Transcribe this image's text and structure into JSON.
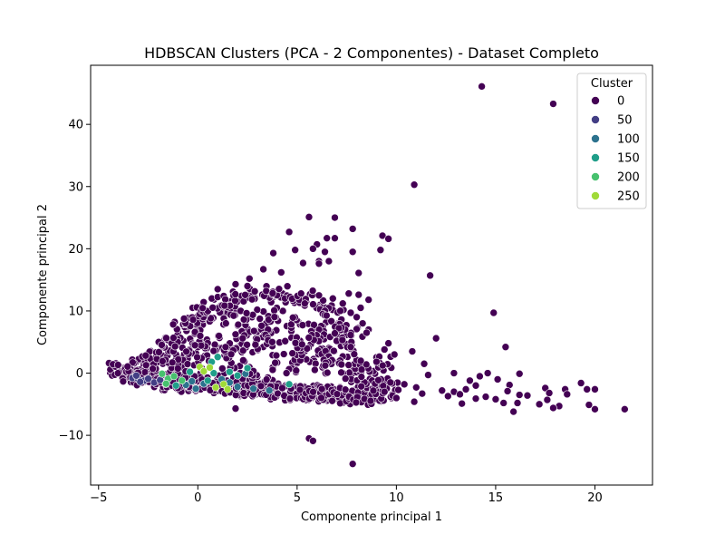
{
  "chart_data": {
    "type": "scatter",
    "title": "HDBSCAN Clusters (PCA - 2 Componentes) - Dataset Completo",
    "xlabel": "Componente principal 1",
    "ylabel": "Componente principal 2",
    "xlim": [
      -5.4,
      22.9
    ],
    "ylim": [
      -18,
      49.5
    ],
    "xticks": [
      -5,
      0,
      5,
      10,
      15,
      20
    ],
    "yticks": [
      -10,
      0,
      10,
      20,
      30,
      40
    ],
    "grid": false,
    "legend": {
      "title": "Cluster",
      "placement": "top-right",
      "entries": [
        {
          "label": "0",
          "color": "#440154"
        },
        {
          "label": "50",
          "color": "#433e85"
        },
        {
          "label": "100",
          "color": "#2c728e"
        },
        {
          "label": "150",
          "color": "#1f9e89"
        },
        {
          "label": "200",
          "color": "#47c16e"
        },
        {
          "label": "250",
          "color": "#a0da39"
        }
      ]
    },
    "series": [
      {
        "cluster": 0,
        "color": "#440154",
        "points": [
          [
            14.3,
            46.1
          ],
          [
            17.9,
            43.3
          ],
          [
            10.9,
            30.3
          ],
          [
            5.6,
            25.1
          ],
          [
            6.9,
            25.0
          ],
          [
            7.8,
            23.2
          ],
          [
            4.6,
            22.7
          ],
          [
            9.3,
            22.1
          ],
          [
            9.6,
            21.6
          ],
          [
            6.9,
            21.7
          ],
          [
            6.5,
            21.7
          ],
          [
            6.0,
            20.7
          ],
          [
            5.8,
            20.0
          ],
          [
            4.9,
            19.8
          ],
          [
            9.2,
            19.8
          ],
          [
            7.8,
            19.5
          ],
          [
            6.4,
            19.5
          ],
          [
            3.8,
            19.3
          ],
          [
            6.1,
            18.0
          ],
          [
            6.6,
            18.0
          ],
          [
            5.3,
            17.7
          ],
          [
            6.1,
            17.6
          ],
          [
            4.2,
            16.2
          ],
          [
            11.7,
            15.7
          ],
          [
            3.3,
            16.7
          ],
          [
            8.1,
            16.1
          ],
          [
            2.6,
            15.2
          ],
          [
            1.0,
            13.5
          ],
          [
            1.9,
            14.3
          ],
          [
            2.5,
            14.0
          ],
          [
            5.2,
            12.8
          ],
          [
            6.1,
            12.5
          ],
          [
            6.8,
            12.0
          ],
          [
            7.6,
            12.8
          ],
          [
            8.1,
            12.6
          ],
          [
            8.6,
            11.8
          ],
          [
            7.3,
            11.2
          ],
          [
            8.2,
            10.5
          ],
          [
            7.7,
            9.7
          ],
          [
            14.9,
            9.7
          ],
          [
            8.0,
            9.0
          ],
          [
            8.3,
            8.0
          ],
          [
            8.6,
            7.0
          ],
          [
            6.9,
            6.4
          ],
          [
            8.5,
            6.5
          ],
          [
            12.0,
            5.6
          ],
          [
            9.6,
            4.8
          ],
          [
            7.7,
            4.2
          ],
          [
            15.5,
            4.2
          ],
          [
            9.4,
            3.8
          ],
          [
            10.8,
            3.5
          ],
          [
            9.9,
            3.0
          ],
          [
            11.4,
            1.5
          ],
          [
            12.9,
            0.0
          ],
          [
            14.6,
            0.0
          ],
          [
            16.2,
            -0.1
          ],
          [
            11.6,
            -0.3
          ],
          [
            14.2,
            -0.5
          ],
          [
            15.1,
            -1.0
          ],
          [
            13.7,
            -1.2
          ],
          [
            19.3,
            -1.6
          ],
          [
            15.7,
            -1.9
          ],
          [
            14.0,
            -2.0
          ],
          [
            17.5,
            -2.4
          ],
          [
            11.0,
            -2.3
          ],
          [
            12.3,
            -2.8
          ],
          [
            13.5,
            -2.6
          ],
          [
            15.6,
            -2.9
          ],
          [
            18.5,
            -2.6
          ],
          [
            19.6,
            -2.6
          ],
          [
            20.0,
            -2.6
          ],
          [
            12.9,
            -3.0
          ],
          [
            17.7,
            -3.2
          ],
          [
            13.2,
            -3.4
          ],
          [
            16.2,
            -3.5
          ],
          [
            16.6,
            -3.6
          ],
          [
            12.6,
            -3.7
          ],
          [
            14.5,
            -3.8
          ],
          [
            18.6,
            -3.4
          ],
          [
            14.0,
            -4.1
          ],
          [
            15.0,
            -4.2
          ],
          [
            17.6,
            -4.3
          ],
          [
            10.9,
            -4.6
          ],
          [
            15.4,
            -4.8
          ],
          [
            16.1,
            -4.8
          ],
          [
            13.3,
            -4.9
          ],
          [
            17.2,
            -5.0
          ],
          [
            18.2,
            -5.3
          ],
          [
            19.7,
            -5.1
          ],
          [
            20.0,
            -5.8
          ],
          [
            21.5,
            -5.8
          ],
          [
            15.9,
            -6.2
          ],
          [
            17.9,
            -5.6
          ],
          [
            1.9,
            -5.7
          ],
          [
            5.6,
            -10.5
          ],
          [
            5.8,
            -10.9
          ],
          [
            7.8,
            -14.6
          ],
          [
            11.3,
            -3.3
          ],
          [
            10.1,
            -2.7
          ],
          [
            9.4,
            -3.0
          ],
          [
            9.7,
            -1.5
          ],
          [
            10.4,
            -1.8
          ],
          [
            9.8,
            -3.6
          ],
          [
            10.0,
            -4.0
          ]
        ]
      }
    ],
    "blob_points": [
      [
        -3.8,
        0.7
      ],
      [
        -3.6,
        0.4
      ],
      [
        -3.3,
        0.2
      ],
      [
        -3.0,
        -0.5
      ],
      [
        -2.7,
        -0.3
      ],
      [
        -2.4,
        -0.9
      ],
      [
        -2.1,
        -1.2
      ],
      [
        -1.8,
        -0.6
      ],
      [
        -1.5,
        -1.6
      ],
      [
        -1.2,
        -0.8
      ],
      [
        -0.9,
        -1.4
      ],
      [
        -0.6,
        -0.9
      ],
      [
        -0.3,
        -1.8
      ],
      [
        0.2,
        -2.0
      ],
      [
        0.6,
        -1.2
      ],
      [
        1.0,
        -2.2
      ],
      [
        1.4,
        -1.6
      ],
      [
        1.8,
        -2.5
      ],
      [
        2.2,
        -1.9
      ],
      [
        2.6,
        -2.7
      ],
      [
        3.0,
        -2.3
      ],
      [
        3.4,
        -3.0
      ],
      [
        3.8,
        -2.6
      ],
      [
        4.2,
        -3.1
      ],
      [
        4.6,
        -2.8
      ],
      [
        5.0,
        -3.2
      ],
      [
        5.4,
        -3.4
      ],
      [
        5.8,
        -3.0
      ],
      [
        6.2,
        -3.5
      ],
      [
        6.6,
        -3.2
      ],
      [
        7.0,
        -3.6
      ],
      [
        7.4,
        -3.3
      ],
      [
        7.8,
        -3.8
      ],
      [
        8.2,
        -3.5
      ],
      [
        8.6,
        -3.9
      ],
      [
        9.0,
        -3.4
      ],
      [
        -1.0,
        6.4
      ],
      [
        -0.5,
        7.5
      ],
      [
        0.0,
        8.5
      ],
      [
        0.5,
        9.7
      ],
      [
        1.0,
        10.5
      ],
      [
        1.5,
        11.2
      ],
      [
        2.0,
        12.0
      ],
      [
        3.0,
        12.6
      ],
      [
        4.0,
        12.8
      ],
      [
        5.0,
        12.2
      ],
      [
        6.0,
        11.0
      ],
      [
        7.0,
        9.0
      ],
      [
        7.5,
        7.0
      ],
      [
        7.0,
        5.0
      ],
      [
        6.0,
        3.0
      ],
      [
        4.5,
        1.0
      ],
      [
        3.0,
        -1.0
      ],
      [
        2.0,
        1.0
      ],
      [
        1.0,
        3.0
      ],
      [
        -0.5,
        2.0
      ],
      [
        -2.0,
        2.5
      ],
      [
        -2.8,
        1.8
      ],
      [
        -1.5,
        4.5
      ],
      [
        0.5,
        5.5
      ],
      [
        2.5,
        6.0
      ],
      [
        4.0,
        7.0
      ],
      [
        5.5,
        8.0
      ],
      [
        6.5,
        6.5
      ],
      [
        3.5,
        9.5
      ],
      [
        2.0,
        8.5
      ],
      [
        1.5,
        4.0
      ],
      [
        3.0,
        4.5
      ],
      [
        4.5,
        4.0
      ],
      [
        5.5,
        5.0
      ],
      [
        0.0,
        3.5
      ],
      [
        -1.0,
        1.0
      ],
      [
        8.0,
        -1.0
      ],
      [
        8.5,
        0.5
      ],
      [
        9.5,
        -2.0
      ],
      [
        9.0,
        1.5
      ],
      [
        7.5,
        2.5
      ],
      [
        6.5,
        1.0
      ]
    ],
    "small_clusters": [
      {
        "cluster": 50,
        "color": "#433e85",
        "points": [
          [
            -3.3,
            -0.8
          ],
          [
            -3.0,
            -1.0
          ],
          [
            -2.7,
            -1.2
          ],
          [
            -2.2,
            -1.5
          ],
          [
            -3.1,
            -0.4
          ],
          [
            -2.5,
            -0.9
          ],
          [
            -1.9,
            -1.1
          ],
          [
            -2.9,
            -1.4
          ]
        ]
      },
      {
        "cluster": 100,
        "color": "#2c728e",
        "points": [
          [
            -0.6,
            -1.9
          ],
          [
            -0.3,
            -1.3
          ],
          [
            0.3,
            -1.7
          ],
          [
            1.2,
            -1.0
          ],
          [
            2.0,
            -2.2
          ],
          [
            2.4,
            -0.1
          ],
          [
            2.8,
            -2.5
          ],
          [
            3.6,
            -2.8
          ],
          [
            -0.1,
            -2.5
          ],
          [
            1.6,
            -1.5
          ]
        ]
      },
      {
        "cluster": 150,
        "color": "#1f9e89",
        "points": [
          [
            0.7,
            1.8
          ],
          [
            1.0,
            2.6
          ],
          [
            0.8,
            0.0
          ],
          [
            1.6,
            0.2
          ],
          [
            2.5,
            0.8
          ],
          [
            -0.4,
            0.2
          ],
          [
            -1.1,
            -2.0
          ],
          [
            0.5,
            -1.2
          ],
          [
            2.0,
            -0.4
          ],
          [
            4.6,
            -1.8
          ]
        ]
      },
      {
        "cluster": 200,
        "color": "#47c16e",
        "points": [
          [
            -1.8,
            -0.1
          ],
          [
            -1.5,
            -0.9
          ],
          [
            -1.2,
            -0.5
          ],
          [
            -0.8,
            -1.2
          ],
          [
            -1.6,
            -1.7
          ]
        ]
      },
      {
        "cluster": 250,
        "color": "#a0da39",
        "points": [
          [
            0.1,
            1.0
          ],
          [
            0.3,
            0.3
          ],
          [
            1.3,
            -1.8
          ],
          [
            1.5,
            -2.6
          ],
          [
            0.9,
            -2.3
          ],
          [
            0.6,
            0.9
          ]
        ]
      }
    ]
  }
}
